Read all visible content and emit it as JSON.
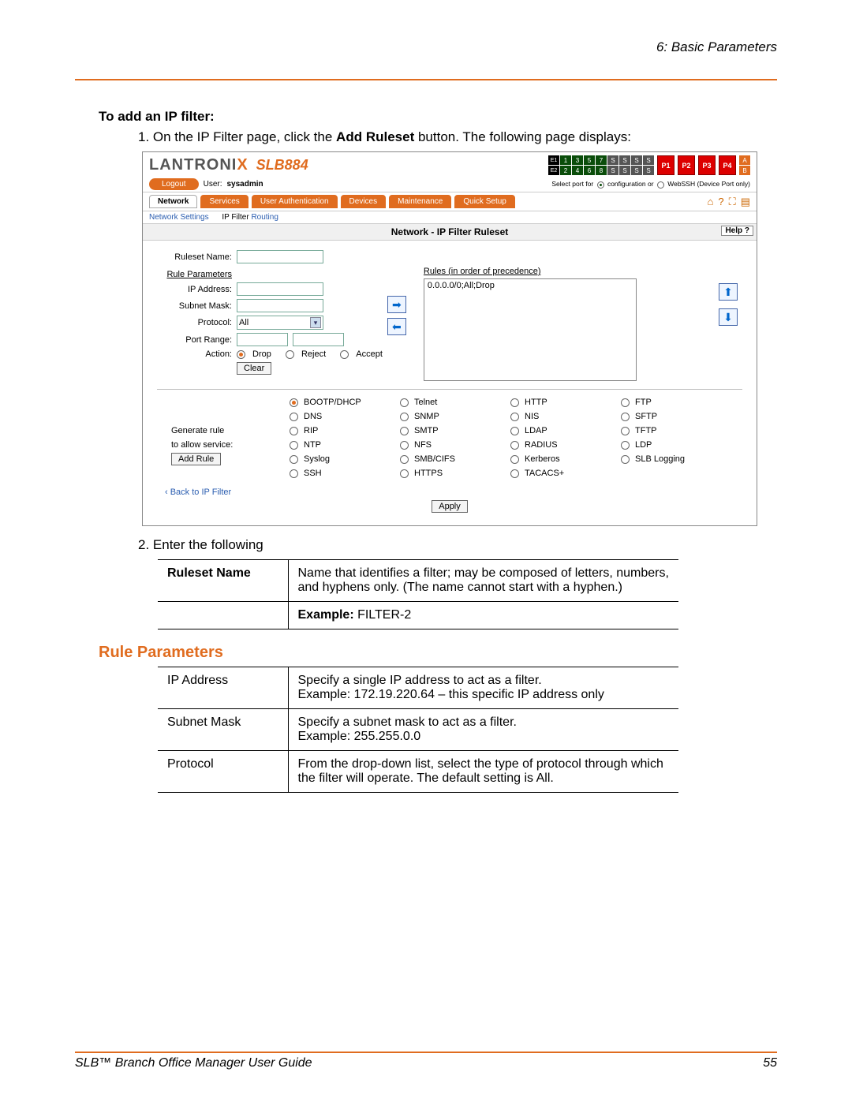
{
  "doc": {
    "chapter_header": "6: Basic Parameters",
    "section_title": "To add an IP filter:",
    "step1_prefix": "1.   On the IP Filter page, click the ",
    "step1_bold": "Add Ruleset",
    "step1_suffix": " button. The following page displays:",
    "step2": "2.   Enter the following",
    "rule_params_heading": "Rule Parameters",
    "footer_title": "SLB™ Branch Office Manager User Guide",
    "page_number": "55"
  },
  "screenshot": {
    "logo_main": "LANTRONI",
    "logo_x": "X",
    "model": "SLB884",
    "e1": "E1",
    "e2": "E2",
    "ports_num": [
      "1",
      "3",
      "5",
      "7",
      "2",
      "4",
      "6",
      "8"
    ],
    "port_s": "S",
    "p_red": [
      "P1",
      "P2",
      "P3",
      "P4"
    ],
    "ab": [
      "A",
      "B"
    ],
    "logout": "Logout",
    "user_label": "User:",
    "user_value": "sysadmin",
    "port_caption_pre": "Select port for ",
    "port_caption_conf": " configuration  or ",
    "port_caption_web": " WebSSH (Device Port only)",
    "tabs": [
      "Network",
      "Services",
      "User Authentication",
      "Devices",
      "Maintenance",
      "Quick Setup"
    ],
    "icons": [
      "⌂",
      "?",
      "⛶",
      "▤"
    ],
    "subtabs": {
      "settings": "Network Settings",
      "filter": "IP Filter",
      "routing": "Routing"
    },
    "panel_title": "Network - IP Filter Ruleset",
    "help": "Help ?",
    "labels": {
      "ruleset_name": "Ruleset Name:",
      "rule_params": "Rule Parameters",
      "rules_precedence": "Rules (in order of precedence)",
      "ip_address": "IP Address:",
      "subnet_mask": "Subnet Mask:",
      "protocol": "Protocol:",
      "port_range": "Port Range:",
      "action": "Action:",
      "generate": "Generate rule",
      "allow": "to allow service:"
    },
    "protocol_value": "All",
    "actions": [
      "Drop",
      "Reject",
      "Accept"
    ],
    "clear_btn": "Clear",
    "rule_line": "0.0.0.0/0;All;Drop",
    "services": [
      [
        "BOOTP/DHCP",
        "Telnet",
        "HTTP",
        "FTP"
      ],
      [
        "DNS",
        "SNMP",
        "NIS",
        "SFTP"
      ],
      [
        "RIP",
        "SMTP",
        "LDAP",
        "TFTP"
      ],
      [
        "NTP",
        "NFS",
        "RADIUS",
        "LDP"
      ],
      [
        "Syslog",
        "SMB/CIFS",
        "Kerberos",
        "SLB Logging"
      ],
      [
        "SSH",
        "HTTPS",
        "TACACS+",
        ""
      ]
    ],
    "add_rule": "Add Rule",
    "back_link": "‹ Back to IP Filter",
    "apply": "Apply"
  },
  "table1": {
    "r1c1": "Ruleset Name",
    "r1c2": "Name that identifies a filter; may be composed of letters, numbers, and hyphens only. (The name cannot start with a hyphen.)",
    "r2_bold": "Example:",
    "r2_rest": " FILTER-2"
  },
  "table2": {
    "rows": [
      {
        "k": "IP Address",
        "v": "Specify a single IP address to act as a filter.\nExample: 172.19.220.64 – this specific IP address only"
      },
      {
        "k": "Subnet Mask",
        "v": "Specify a subnet mask to act as a filter.\nExample: 255.255.0.0"
      },
      {
        "k": "Protocol",
        "v": "From the drop-down list, select the type of protocol through which the filter will operate. The default setting is All."
      }
    ]
  },
  "colors": {
    "orange": "#e06c1f"
  }
}
